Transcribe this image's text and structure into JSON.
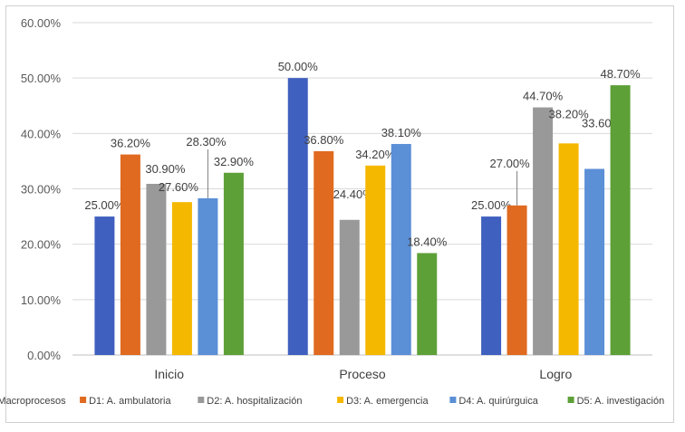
{
  "chart_data": {
    "type": "bar",
    "title": "",
    "xlabel": "",
    "ylabel": "",
    "ylim": [
      0,
      60
    ],
    "y_ticks": [
      "0.00%",
      "10.00%",
      "20.00%",
      "30.00%",
      "40.00%",
      "50.00%",
      "60.00%"
    ],
    "grid": true,
    "legend_position": "bottom",
    "categories": [
      "Inicio",
      "Proceso",
      "Logro"
    ],
    "series": [
      {
        "name": "Macroprocesos",
        "color": "#4060C0",
        "values": [
          25.0,
          50.0,
          25.0
        ],
        "labels": [
          "25.00%",
          "50.00%",
          "25.00%"
        ]
      },
      {
        "name": "D1: A. ambulatoria",
        "color": "#E06A20",
        "values": [
          36.2,
          36.8,
          27.0
        ],
        "labels": [
          "36.20%",
          "36.80%",
          "27.00%"
        ]
      },
      {
        "name": "D2: A. hospitalización",
        "color": "#999999",
        "values": [
          30.9,
          24.4,
          44.7
        ],
        "labels": [
          "30.90%",
          "24.40%",
          "44.70%"
        ]
      },
      {
        "name": "D3: A. emergencia",
        "color": "#F5B800",
        "values": [
          27.6,
          34.2,
          38.2
        ],
        "labels": [
          "27.60%",
          "34.20%",
          "38.20%"
        ]
      },
      {
        "name": "D4: A. quirúrguica",
        "color": "#5B8FD6",
        "values": [
          28.3,
          38.1,
          33.6
        ],
        "labels": [
          "28.30%",
          "38.10%",
          "33.60%"
        ]
      },
      {
        "name": "D5: A. investigación",
        "color": "#5EA038",
        "values": [
          32.9,
          18.4,
          48.7
        ],
        "labels": [
          "32.90%",
          "18.40%",
          "48.70%"
        ]
      }
    ]
  }
}
